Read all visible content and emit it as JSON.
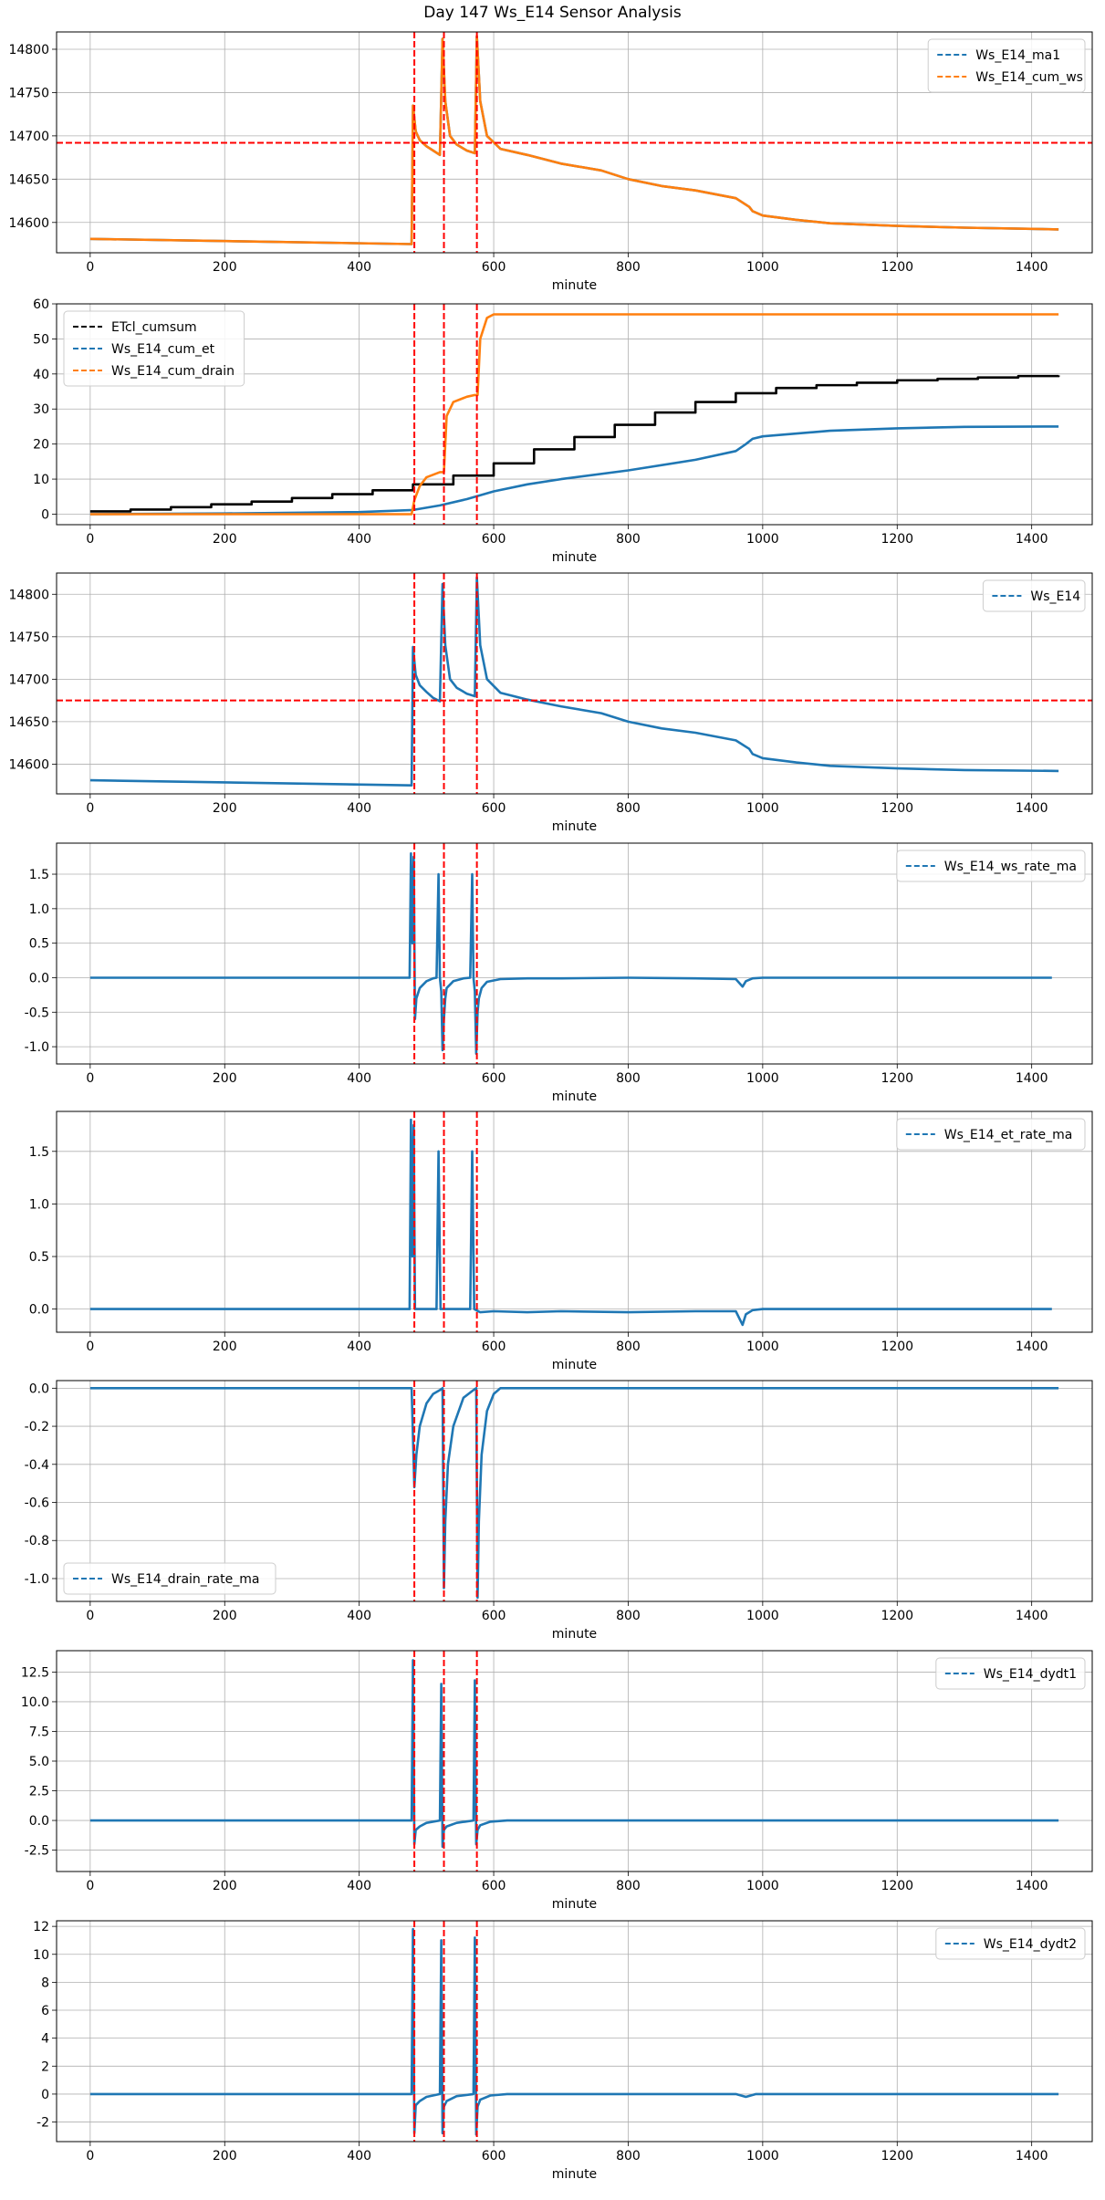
{
  "figure": {
    "title": "Day 147 Ws_E14 Sensor Analysis"
  },
  "chart_data": [
    {
      "type": "line",
      "xlabel": "minute",
      "xlim": [
        -50,
        1490
      ],
      "xticks": [
        0,
        200,
        400,
        600,
        800,
        1000,
        1200,
        1400
      ],
      "ylim": [
        14565,
        14820
      ],
      "yticks": [
        14600,
        14650,
        14700,
        14750,
        14800
      ],
      "ytick_labels": [
        "14600",
        "14650",
        "14700",
        "14750",
        "14800"
      ],
      "legend_loc": "upper right",
      "series": [
        {
          "name": "Ws_E14_ma1",
          "color": "#1f77b4",
          "style": "dashed",
          "x": [
            0,
            478,
            480,
            484,
            490,
            500,
            510,
            520,
            524,
            528,
            535,
            545,
            560,
            572,
            575,
            580,
            590,
            610,
            650,
            700,
            760,
            800,
            850,
            900,
            960,
            980,
            985,
            1000,
            1050,
            1100,
            1200,
            1300,
            1440
          ],
          "y": [
            14581,
            14575,
            14735,
            14705,
            14695,
            14688,
            14683,
            14678,
            14812,
            14740,
            14700,
            14690,
            14683,
            14680,
            14815,
            14740,
            14700,
            14685,
            14678,
            14668,
            14660,
            14650,
            14642,
            14637,
            14628,
            14618,
            14613,
            14608,
            14603,
            14599,
            14596,
            14594,
            14592
          ]
        },
        {
          "name": "Ws_E14_cum_ws",
          "color": "#ff7f0e",
          "style": "dashed",
          "x": [
            0,
            478,
            480,
            484,
            490,
            500,
            510,
            520,
            524,
            528,
            535,
            545,
            560,
            572,
            575,
            580,
            590,
            610,
            650,
            700,
            760,
            800,
            850,
            900,
            960,
            980,
            985,
            1000,
            1050,
            1100,
            1200,
            1300,
            1440
          ],
          "y": [
            14581,
            14575,
            14735,
            14705,
            14695,
            14688,
            14683,
            14678,
            14812,
            14740,
            14700,
            14690,
            14683,
            14680,
            14815,
            14740,
            14700,
            14685,
            14678,
            14668,
            14660,
            14650,
            14642,
            14637,
            14628,
            14618,
            14613,
            14608,
            14603,
            14599,
            14596,
            14594,
            14592
          ]
        }
      ],
      "vlines": [
        482,
        526,
        575
      ],
      "hlines": [
        14692
      ]
    },
    {
      "type": "line",
      "xlabel": "minute",
      "xlim": [
        -50,
        1490
      ],
      "xticks": [
        0,
        200,
        400,
        600,
        800,
        1000,
        1200,
        1400
      ],
      "ylim": [
        -3,
        60
      ],
      "yticks": [
        0,
        10,
        20,
        30,
        40,
        50,
        60
      ],
      "ytick_labels": [
        "0",
        "10",
        "20",
        "30",
        "40",
        "50",
        "60"
      ],
      "legend_loc": "upper left",
      "series": [
        {
          "name": "ETcl_cumsum",
          "color": "#000000",
          "style": "step",
          "x": [
            0,
            60,
            120,
            180,
            240,
            300,
            360,
            420,
            480,
            540,
            600,
            660,
            720,
            780,
            840,
            900,
            960,
            1020,
            1080,
            1140,
            1200,
            1260,
            1320,
            1380,
            1440
          ],
          "y": [
            0.8,
            1.3,
            2.0,
            2.8,
            3.6,
            4.6,
            5.7,
            6.8,
            8.5,
            11.0,
            14.5,
            18.5,
            22.0,
            25.5,
            29.0,
            32.0,
            34.5,
            36.0,
            36.8,
            37.5,
            38.2,
            38.6,
            39.0,
            39.4,
            39.6
          ]
        },
        {
          "name": "Ws_E14_cum_et",
          "color": "#1f77b4",
          "style": "dashed",
          "x": [
            0,
            200,
            400,
            480,
            520,
            560,
            600,
            650,
            700,
            800,
            900,
            960,
            975,
            985,
            1000,
            1100,
            1200,
            1300,
            1440
          ],
          "y": [
            0,
            0.2,
            0.6,
            1.2,
            2.5,
            4.3,
            6.5,
            8.5,
            10.0,
            12.5,
            15.5,
            18.0,
            20.0,
            21.5,
            22.2,
            23.8,
            24.5,
            24.9,
            25.0
          ]
        },
        {
          "name": "Ws_E14_cum_drain",
          "color": "#ff7f0e",
          "style": "dashed",
          "x": [
            0,
            478,
            482,
            490,
            500,
            520,
            526,
            530,
            540,
            560,
            572,
            576,
            580,
            590,
            600,
            700,
            1440
          ],
          "y": [
            0,
            0,
            4,
            8,
            10.5,
            12,
            12,
            28,
            32,
            33.5,
            34,
            34,
            50,
            56,
            57,
            57,
            57
          ]
        }
      ],
      "vlines": [
        482,
        526,
        575
      ],
      "hlines": []
    },
    {
      "type": "line",
      "xlabel": "minute",
      "xlim": [
        -50,
        1490
      ],
      "xticks": [
        0,
        200,
        400,
        600,
        800,
        1000,
        1200,
        1400
      ],
      "ylim": [
        14565,
        14825
      ],
      "yticks": [
        14600,
        14650,
        14700,
        14750,
        14800
      ],
      "ytick_labels": [
        "14600",
        "14650",
        "14700",
        "14750",
        "14800"
      ],
      "legend_loc": "upper right",
      "series": [
        {
          "name": "Ws_E14",
          "color": "#1f77b4",
          "style": "dashed",
          "x": [
            0,
            478,
            480,
            484,
            490,
            500,
            510,
            520,
            524,
            528,
            535,
            545,
            560,
            572,
            575,
            580,
            590,
            610,
            650,
            700,
            760,
            800,
            850,
            900,
            960,
            980,
            985,
            1000,
            1050,
            1100,
            1200,
            1300,
            1440
          ],
          "y": [
            14581,
            14575,
            14738,
            14705,
            14693,
            14685,
            14678,
            14674,
            14812,
            14740,
            14700,
            14690,
            14683,
            14680,
            14820,
            14740,
            14700,
            14684,
            14676,
            14668,
            14660,
            14650,
            14642,
            14637,
            14628,
            14618,
            14612,
            14607,
            14602,
            14598,
            14595,
            14593,
            14592
          ]
        }
      ],
      "vlines": [
        482,
        526,
        575
      ],
      "hlines": [
        14675
      ]
    },
    {
      "type": "line",
      "xlabel": "minute",
      "xlim": [
        -50,
        1490
      ],
      "xticks": [
        0,
        200,
        400,
        600,
        800,
        1000,
        1200,
        1400
      ],
      "ylim": [
        -1.25,
        1.95
      ],
      "yticks": [
        -1.0,
        -0.5,
        0.0,
        0.5,
        1.0,
        1.5
      ],
      "ytick_labels": [
        "-1.0",
        "-0.5",
        "0.0",
        "0.5",
        "1.0",
        "1.5"
      ],
      "legend_loc": "upper right",
      "series": [
        {
          "name": "Ws_E14_ws_rate_ma",
          "color": "#1f77b4",
          "style": "dashed",
          "x": [
            0,
            475,
            477,
            479,
            481,
            483,
            485,
            490,
            500,
            510,
            515,
            518,
            520,
            522,
            524,
            526,
            528,
            530,
            540,
            555,
            565,
            568,
            570,
            572,
            574,
            576,
            578,
            582,
            590,
            610,
            650,
            700,
            800,
            900,
            960,
            970,
            975,
            985,
            1000,
            1200,
            1430
          ],
          "y": [
            0,
            0,
            1.8,
            0.5,
            1.75,
            -0.6,
            -0.3,
            -0.15,
            -0.05,
            -0.01,
            0,
            1.5,
            0,
            -0.2,
            -1.05,
            -0.6,
            -0.3,
            -0.15,
            -0.05,
            -0.01,
            0,
            1.5,
            0,
            -0.2,
            -1.1,
            -0.5,
            -0.3,
            -0.15,
            -0.06,
            -0.02,
            -0.01,
            -0.01,
            0,
            -0.01,
            -0.02,
            -0.13,
            -0.05,
            -0.01,
            0,
            0,
            0
          ]
        }
      ],
      "vlines": [
        482,
        526,
        575
      ],
      "hlines": []
    },
    {
      "type": "line",
      "xlabel": "minute",
      "xlim": [
        -50,
        1490
      ],
      "xticks": [
        0,
        200,
        400,
        600,
        800,
        1000,
        1200,
        1400
      ],
      "ylim": [
        -0.22,
        1.88
      ],
      "yticks": [
        0.0,
        0.5,
        1.0,
        1.5
      ],
      "ytick_labels": [
        "0.0",
        "0.5",
        "1.0",
        "1.5"
      ],
      "legend_loc": "upper right",
      "series": [
        {
          "name": "Ws_E14_et_rate_ma",
          "color": "#1f77b4",
          "style": "dashed",
          "x": [
            0,
            475,
            477,
            479,
            481,
            483,
            485,
            515,
            518,
            521,
            524,
            565,
            568,
            571,
            574,
            580,
            600,
            650,
            700,
            800,
            900,
            960,
            970,
            975,
            985,
            1000,
            1200,
            1430
          ],
          "y": [
            0,
            0,
            1.8,
            0.5,
            1.75,
            0,
            0,
            0,
            1.5,
            0,
            0,
            0,
            1.5,
            0,
            -0.01,
            -0.03,
            -0.02,
            -0.03,
            -0.02,
            -0.03,
            -0.02,
            -0.02,
            -0.15,
            -0.05,
            -0.01,
            0,
            0,
            0
          ]
        }
      ],
      "vlines": [
        482,
        526,
        575
      ],
      "hlines": []
    },
    {
      "type": "line",
      "xlabel": "minute",
      "xlim": [
        -50,
        1490
      ],
      "xticks": [
        0,
        200,
        400,
        600,
        800,
        1000,
        1200,
        1400
      ],
      "ylim": [
        -1.12,
        0.04
      ],
      "yticks": [
        -1.0,
        -0.8,
        -0.6,
        -0.4,
        -0.2,
        0.0
      ],
      "ytick_labels": [
        "-1.0",
        "-0.8",
        "-0.6",
        "-0.4",
        "-0.2",
        "0.0"
      ],
      "legend_loc": "lower left",
      "series": [
        {
          "name": "Ws_E14_drain_rate_ma",
          "color": "#1f77b4",
          "style": "dashed",
          "x": [
            0,
            478,
            482,
            485,
            490,
            500,
            510,
            520,
            524,
            526,
            528,
            532,
            540,
            555,
            570,
            574,
            576,
            578,
            582,
            590,
            600,
            610,
            1440
          ],
          "y": [
            0,
            0,
            -0.52,
            -0.35,
            -0.2,
            -0.08,
            -0.03,
            -0.01,
            0,
            -1.05,
            -0.7,
            -0.4,
            -0.2,
            -0.05,
            -0.01,
            0,
            -1.1,
            -0.7,
            -0.35,
            -0.12,
            -0.03,
            0,
            0
          ]
        }
      ],
      "vlines": [
        482,
        526,
        575
      ],
      "hlines": []
    },
    {
      "type": "line",
      "xlabel": "minute",
      "xlim": [
        -50,
        1490
      ],
      "xticks": [
        0,
        200,
        400,
        600,
        800,
        1000,
        1200,
        1400
      ],
      "ylim": [
        -4.3,
        14.3
      ],
      "yticks": [
        -2.5,
        0.0,
        2.5,
        5.0,
        7.5,
        10.0,
        12.5
      ],
      "ytick_labels": [
        "-2.5",
        "0.0",
        "2.5",
        "5.0",
        "7.5",
        "10.0",
        "12.5"
      ],
      "legend_loc": "upper right",
      "series": [
        {
          "name": "Ws_E14_dydt1",
          "color": "#1f77b4",
          "style": "dashed",
          "x": [
            0,
            478,
            480,
            482,
            484,
            490,
            500,
            520,
            522,
            524,
            526,
            530,
            545,
            570,
            572,
            574,
            576,
            580,
            595,
            620,
            1440
          ],
          "y": [
            0,
            0,
            13.5,
            -2.0,
            -0.8,
            -0.5,
            -0.2,
            0,
            11.5,
            -2.2,
            -0.8,
            -0.5,
            -0.2,
            0,
            11.8,
            -2.0,
            -0.8,
            -0.4,
            -0.1,
            0,
            0
          ]
        }
      ],
      "vlines": [
        482,
        526,
        575
      ],
      "hlines": []
    },
    {
      "type": "line",
      "xlabel": "minute",
      "xlim": [
        -50,
        1490
      ],
      "xticks": [
        0,
        200,
        400,
        600,
        800,
        1000,
        1200,
        1400
      ],
      "ylim": [
        -3.4,
        12.4
      ],
      "yticks": [
        -2,
        0,
        2,
        4,
        6,
        8,
        10,
        12
      ],
      "ytick_labels": [
        "-2",
        "0",
        "2",
        "4",
        "6",
        "8",
        "10",
        "12"
      ],
      "legend_loc": "upper right",
      "series": [
        {
          "name": "Ws_E14_dydt2",
          "color": "#1f77b4",
          "style": "dashed",
          "x": [
            0,
            478,
            480,
            482,
            484,
            490,
            500,
            520,
            522,
            524,
            526,
            530,
            545,
            570,
            572,
            574,
            576,
            580,
            595,
            620,
            960,
            975,
            990,
            1440
          ],
          "y": [
            0,
            0,
            11.8,
            -2.8,
            -0.8,
            -0.5,
            -0.2,
            0,
            11.0,
            -2.8,
            -0.9,
            -0.5,
            -0.15,
            0,
            11.2,
            -2.9,
            -0.9,
            -0.4,
            -0.1,
            0,
            0,
            -0.2,
            0,
            0
          ]
        }
      ],
      "vlines": [
        482,
        526,
        575
      ],
      "hlines": []
    }
  ]
}
